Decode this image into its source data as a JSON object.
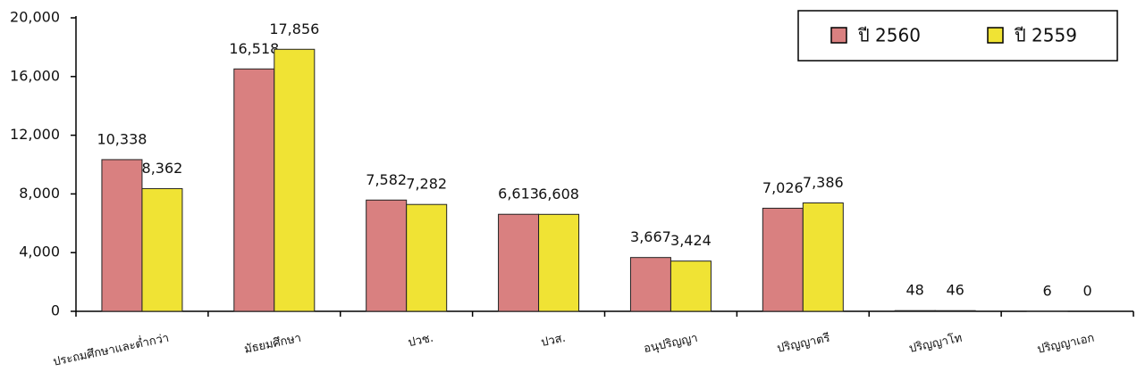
{
  "chart_data": {
    "type": "bar",
    "categories": [
      "ประถมศึกษาและต่ำกว่า",
      "มัธยมศึกษา",
      "ปวช.",
      "ปวส.",
      "อนุปริญญา",
      "ปริญญาตรี",
      "ปริญญาโท",
      "ปริญญาเอก"
    ],
    "series": [
      {
        "name": "ปี 2560",
        "color": "#d98080",
        "values": [
          10338,
          16518,
          7582,
          6613,
          3667,
          7026,
          48,
          6
        ],
        "value_labels": [
          "10,338",
          "16,518",
          "7,582",
          "6,613",
          "3,667",
          "7,026",
          "48",
          "6"
        ]
      },
      {
        "name": "ปี 2559",
        "color": "#f0e334",
        "values": [
          8362,
          17856,
          7282,
          6608,
          3424,
          7386,
          46,
          0
        ],
        "value_labels": [
          "8,362",
          "17,856",
          "7,282",
          "6,608",
          "3,424",
          "7,386",
          "46",
          "0"
        ]
      }
    ],
    "ylim": [
      0,
      20000
    ],
    "yticks": [
      0,
      {
        "value": 4000,
        "label": "4,000"
      },
      {
        "value": 8000,
        "label": "8,000"
      },
      {
        "value": 12000,
        "label": "12,000"
      },
      {
        "value": 16000,
        "label": "16,000"
      },
      {
        "value": 20000,
        "label": "20,000"
      }
    ],
    "legend": "top-right"
  }
}
